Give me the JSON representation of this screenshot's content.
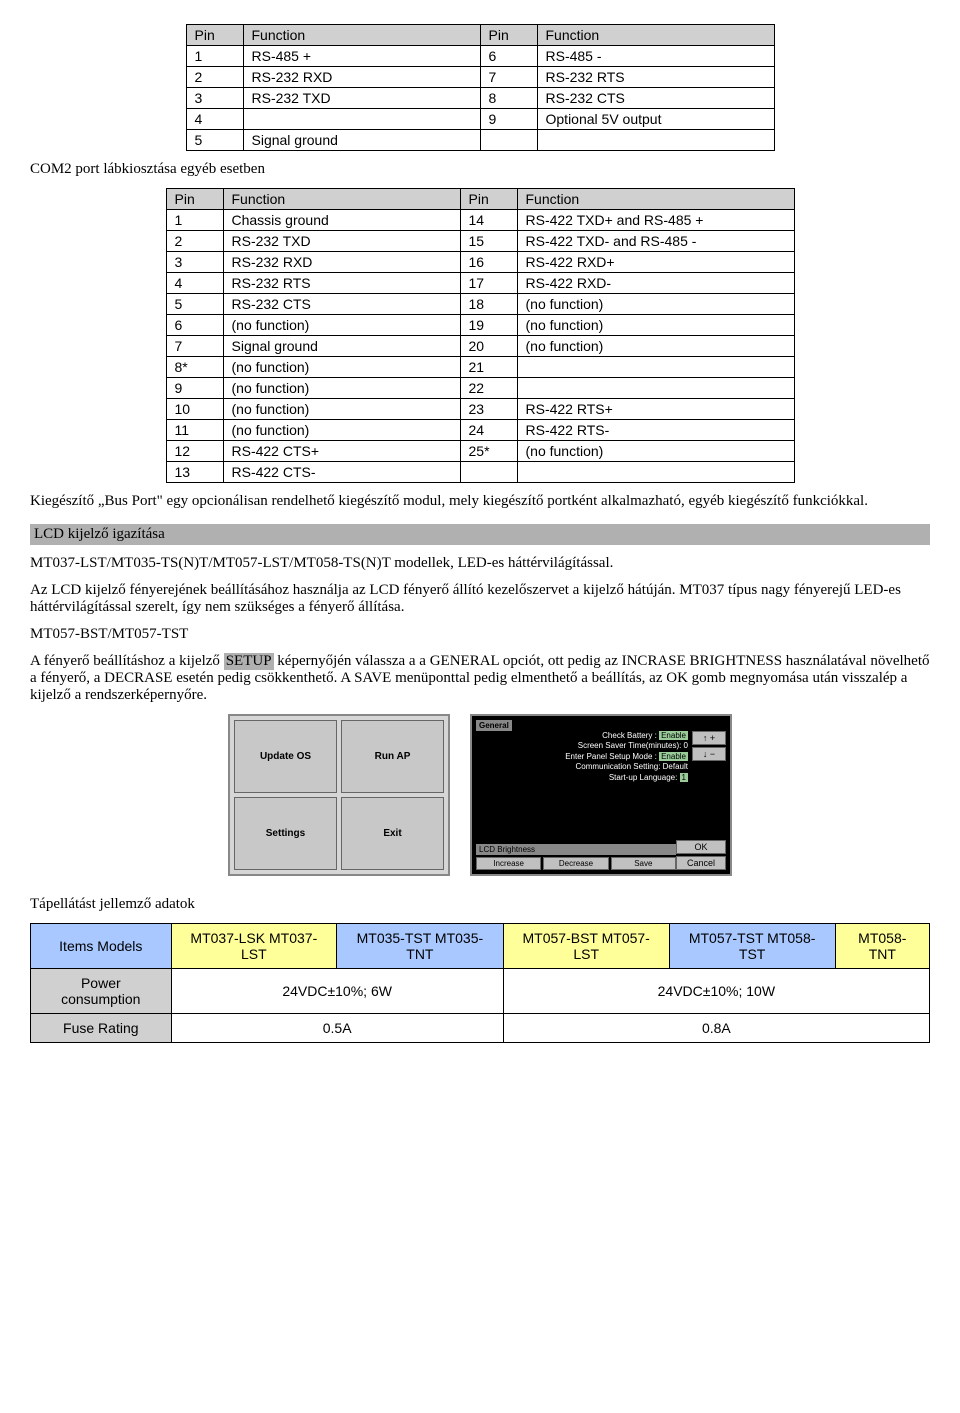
{
  "pin_table1": {
    "headers": [
      "Pin",
      "Function",
      "Pin",
      "Function"
    ],
    "rows": [
      [
        "1",
        "RS-485 +",
        "6",
        "RS-485 -"
      ],
      [
        "2",
        "RS-232 RXD",
        "7",
        "RS-232 RTS"
      ],
      [
        "3",
        "RS-232 TXD",
        "8",
        "RS-232 CTS"
      ],
      [
        "4",
        "",
        "9",
        "Optional 5V output"
      ],
      [
        "5",
        "Signal ground",
        "",
        ""
      ]
    ],
    "col_widths": [
      "40px",
      "220px",
      "40px",
      "220px"
    ]
  },
  "heading_com2": "COM2 port lábkiosztása egyéb esetben",
  "pin_table2": {
    "headers": [
      "Pin",
      "Function",
      "Pin",
      "Function"
    ],
    "rows": [
      [
        "1",
        "Chassis ground",
        "14",
        "RS-422 TXD+ and RS-485 +"
      ],
      [
        "2",
        "RS-232 TXD",
        "15",
        "RS-422 TXD- and RS-485 -"
      ],
      [
        "3",
        "RS-232 RXD",
        "16",
        "RS-422 RXD+"
      ],
      [
        "4",
        "RS-232 RTS",
        "17",
        "RS-422 RXD-"
      ],
      [
        "5",
        "RS-232 CTS",
        "18",
        "(no function)"
      ],
      [
        "6",
        "(no function)",
        "19",
        "(no function)"
      ],
      [
        "7",
        "Signal ground",
        "20",
        "(no function)"
      ],
      [
        "8*",
        "(no function)",
        "21",
        ""
      ],
      [
        "9",
        "(no function)",
        "22",
        ""
      ],
      [
        "10",
        "(no function)",
        "23",
        "RS-422 RTS+"
      ],
      [
        "11",
        "(no function)",
        "24",
        "RS-422 RTS-"
      ],
      [
        "12",
        "RS-422 CTS+",
        "25*",
        "(no function)"
      ],
      [
        "13",
        "RS-422 CTS-",
        "",
        ""
      ]
    ],
    "col_widths": [
      "40px",
      "220px",
      "40px",
      "260px"
    ]
  },
  "para_busport": "Kiegészítő „Bus Port\" egy opcionálisan rendelhető kiegészítő modul, mely kiegészítő portként alkalmazható, egyéb kiegészítő funkciókkal.",
  "section_lcd": "LCD kijelző igazítása",
  "para_models": "MT037-LST/MT035-TS(N)T/MT057-LST/MT058-TS(N)T modellek, LED-es háttérvilágítással.",
  "para_lcd1": "Az LCD kijelző fényerejének beállításához használja az LCD fényerő állító kezelőszervet a kijelző hátúján. MT037 típus nagy fényerejű LED-es háttérvilágítással szerelt, így nem szükséges a fényerő állítása.",
  "heading_mt057": "MT057-BST/MT057-TST",
  "para_setup_before": "A fényerő beállításhoz a kijelző ",
  "para_setup_label": "SETUP",
  "para_setup_after": " képernyőjén válassza a a GENERAL opciót, ott pedig az INCRASE BRIGHTNESS használatával növelhető a fényerő, a DECRASE esetén pedig csökkenthető. A SAVE menüponttal pedig elmenthető a beállítás, az OK gomb megnyomása után visszalép a kijelző a rendszerképernyőre.",
  "shot1": {
    "b1": "Update OS",
    "b2": "Run AP",
    "b3": "Settings",
    "b4": "Exit"
  },
  "shot2": {
    "title": "General",
    "lines": [
      "Check Battery :",
      "Screen Saver Time(minutes): 0",
      "Enter Panel Setup Mode :",
      "Communication Setting: Default",
      "Start-up Language:"
    ],
    "chip": "Enable",
    "lang": "1",
    "up": "↑  +",
    "down": "↓  −",
    "bright": "LCD Brightness",
    "inc": "Increase",
    "dec": "Decrease",
    "save": "Save",
    "ok": "OK",
    "cancel": "Cancel"
  },
  "heading_power": "Tápellátást jellemző adatok",
  "power_table": {
    "row0": [
      "Items Models",
      "MT037-LSK MT037-LST",
      "MT035-TST MT035-TNT",
      "MT057-BST MT057-LST",
      "MT057-TST MT058-TST",
      "MT058-TNT"
    ],
    "row1_label": "Power consumption",
    "row1_a": "24VDC±10%; 6W",
    "row1_b": "24VDC±10%; 10W",
    "row2_label": "Fuse Rating",
    "row2_a": "0.5A",
    "row2_b": "0.8A"
  }
}
